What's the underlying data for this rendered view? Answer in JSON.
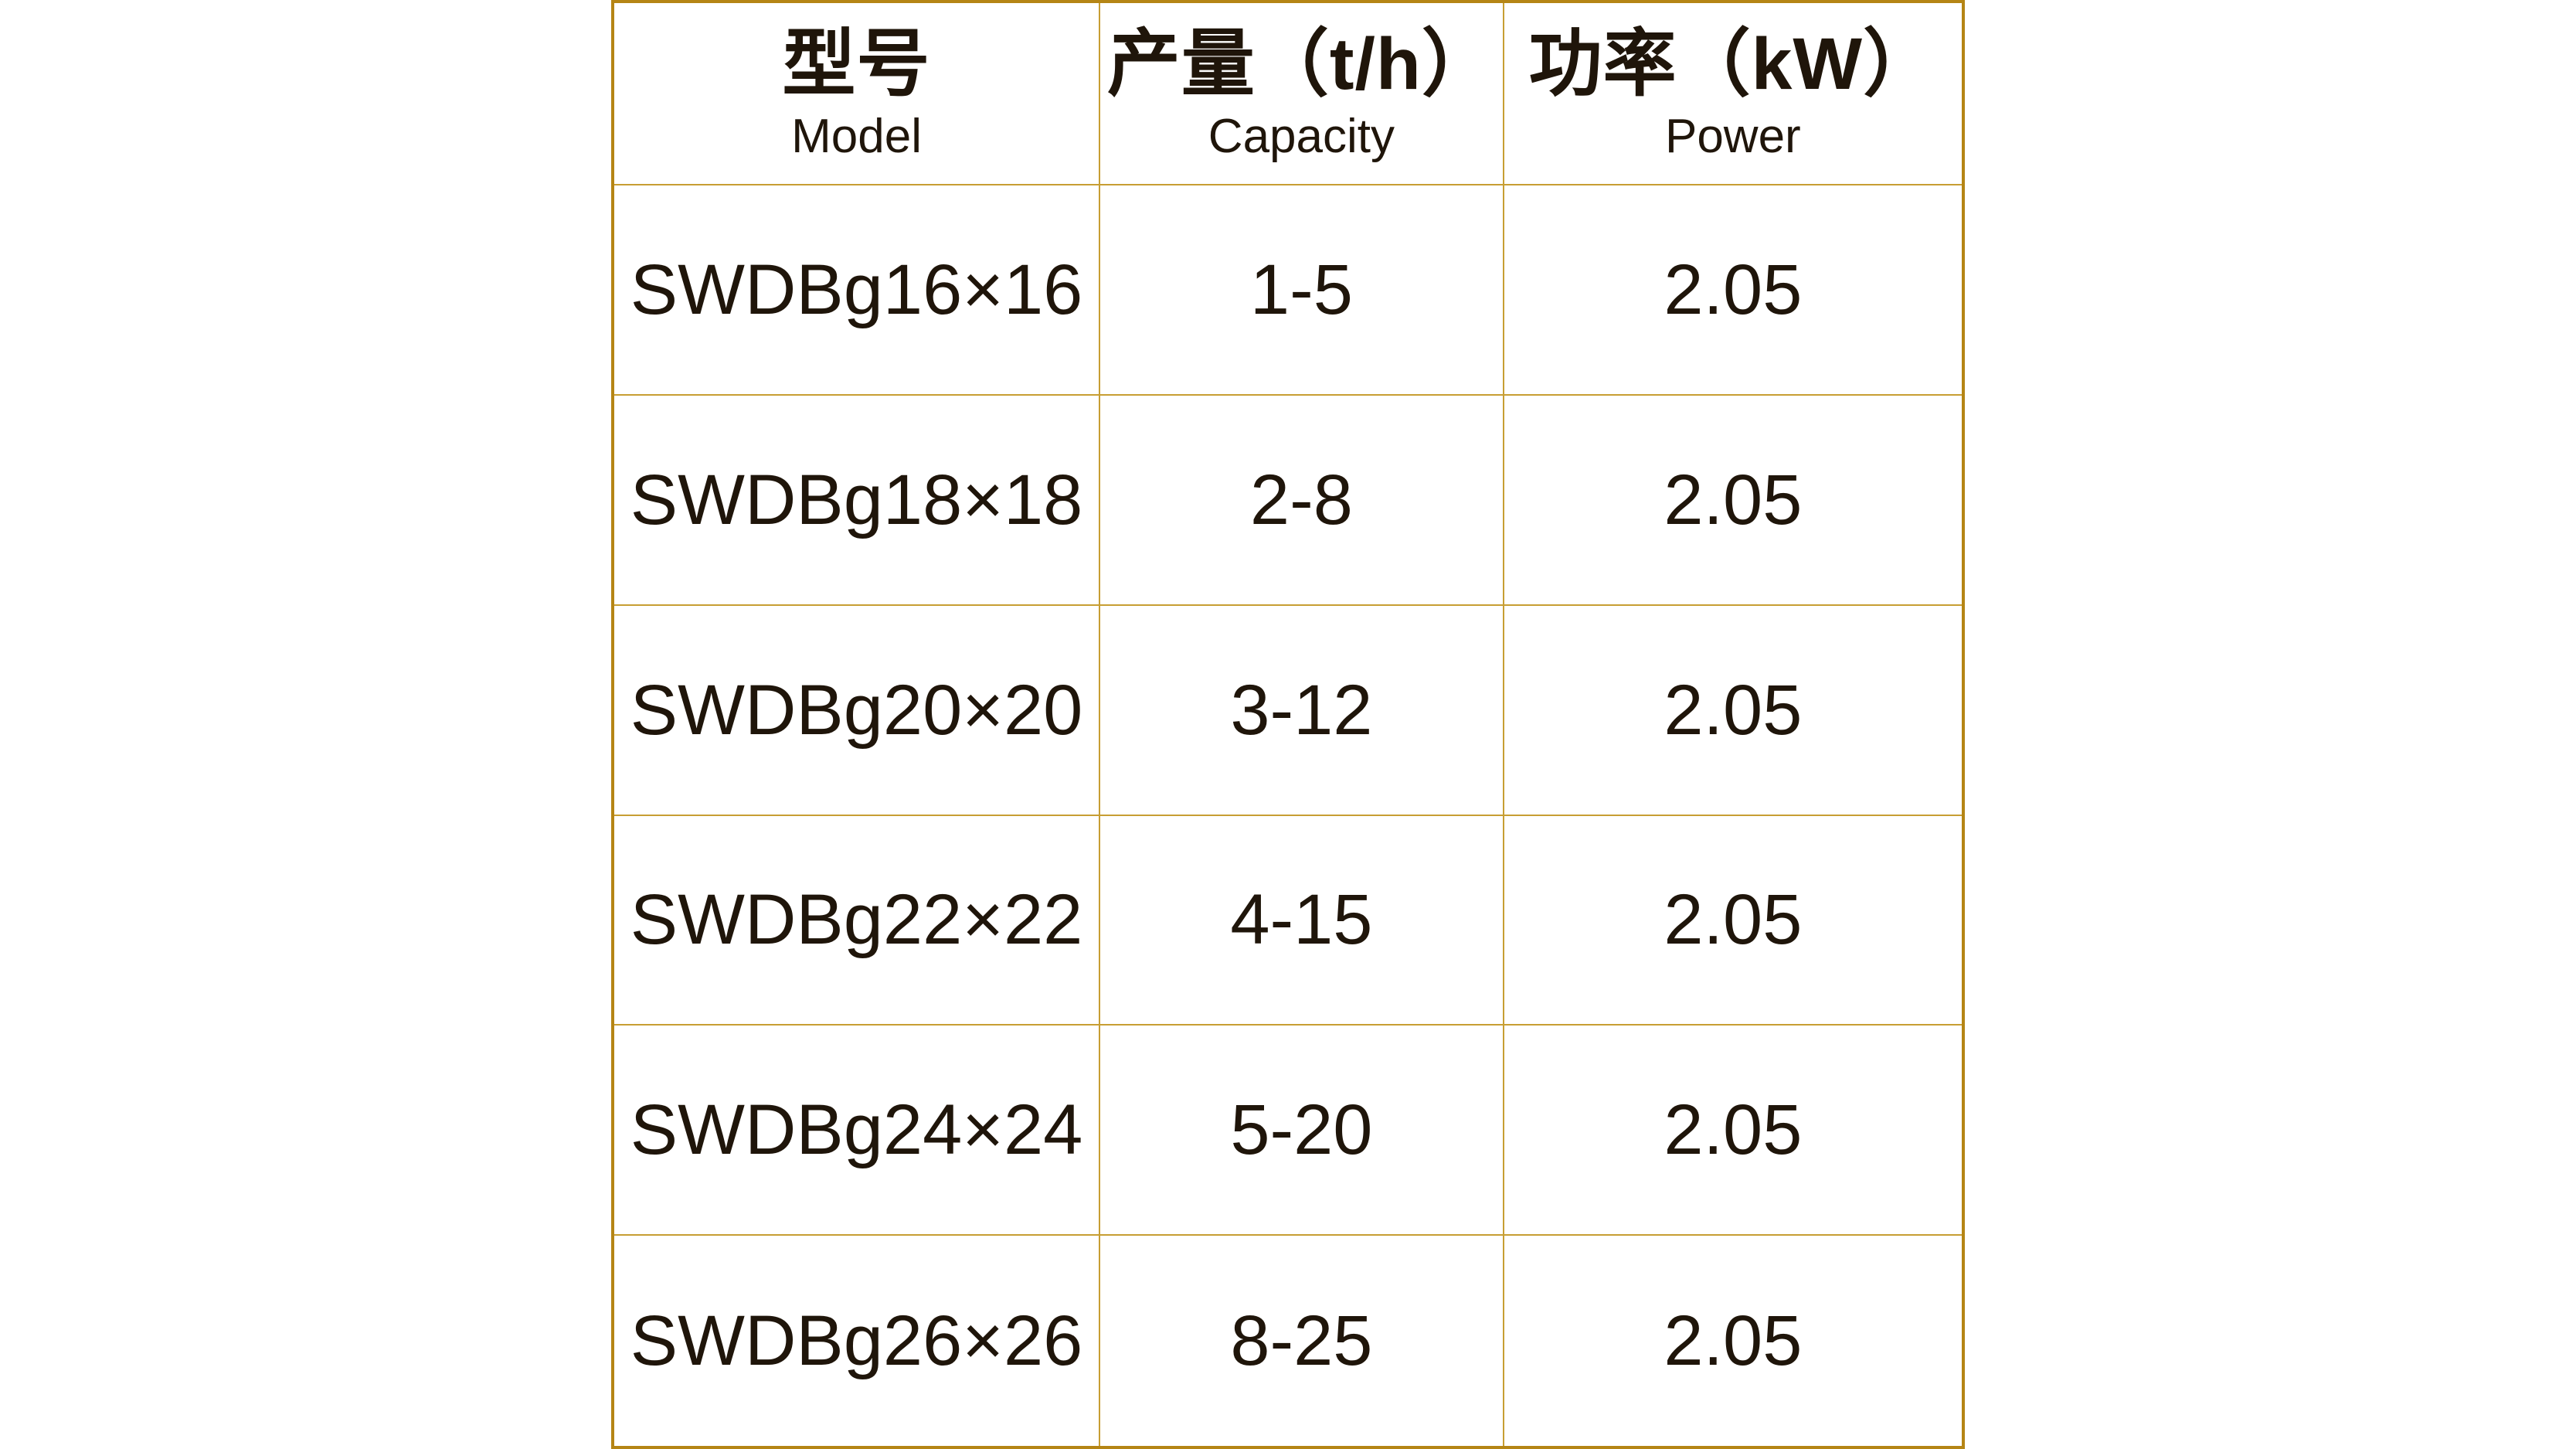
{
  "colors": {
    "table_border_outer": "#b58515",
    "table_border_inner": "#c79e33",
    "text": "#1f150a",
    "background": "#ffffff"
  },
  "chart_data": {
    "type": "table",
    "columns": [
      {
        "zh": "型号",
        "en": "Model"
      },
      {
        "zh": "产量（t/h）",
        "en": "Capacity"
      },
      {
        "zh": "功率（kW）",
        "en": "Power"
      }
    ],
    "rows": [
      [
        "SWDBg16×16",
        "1-5",
        "2.05"
      ],
      [
        "SWDBg18×18",
        "2-8",
        "2.05"
      ],
      [
        "SWDBg20×20",
        "3-12",
        "2.05"
      ],
      [
        "SWDBg22×22",
        "4-15",
        "2.05"
      ],
      [
        "SWDBg24×24",
        "5-20",
        "2.05"
      ],
      [
        "SWDBg26×26",
        "8-25",
        "2.05"
      ]
    ]
  }
}
